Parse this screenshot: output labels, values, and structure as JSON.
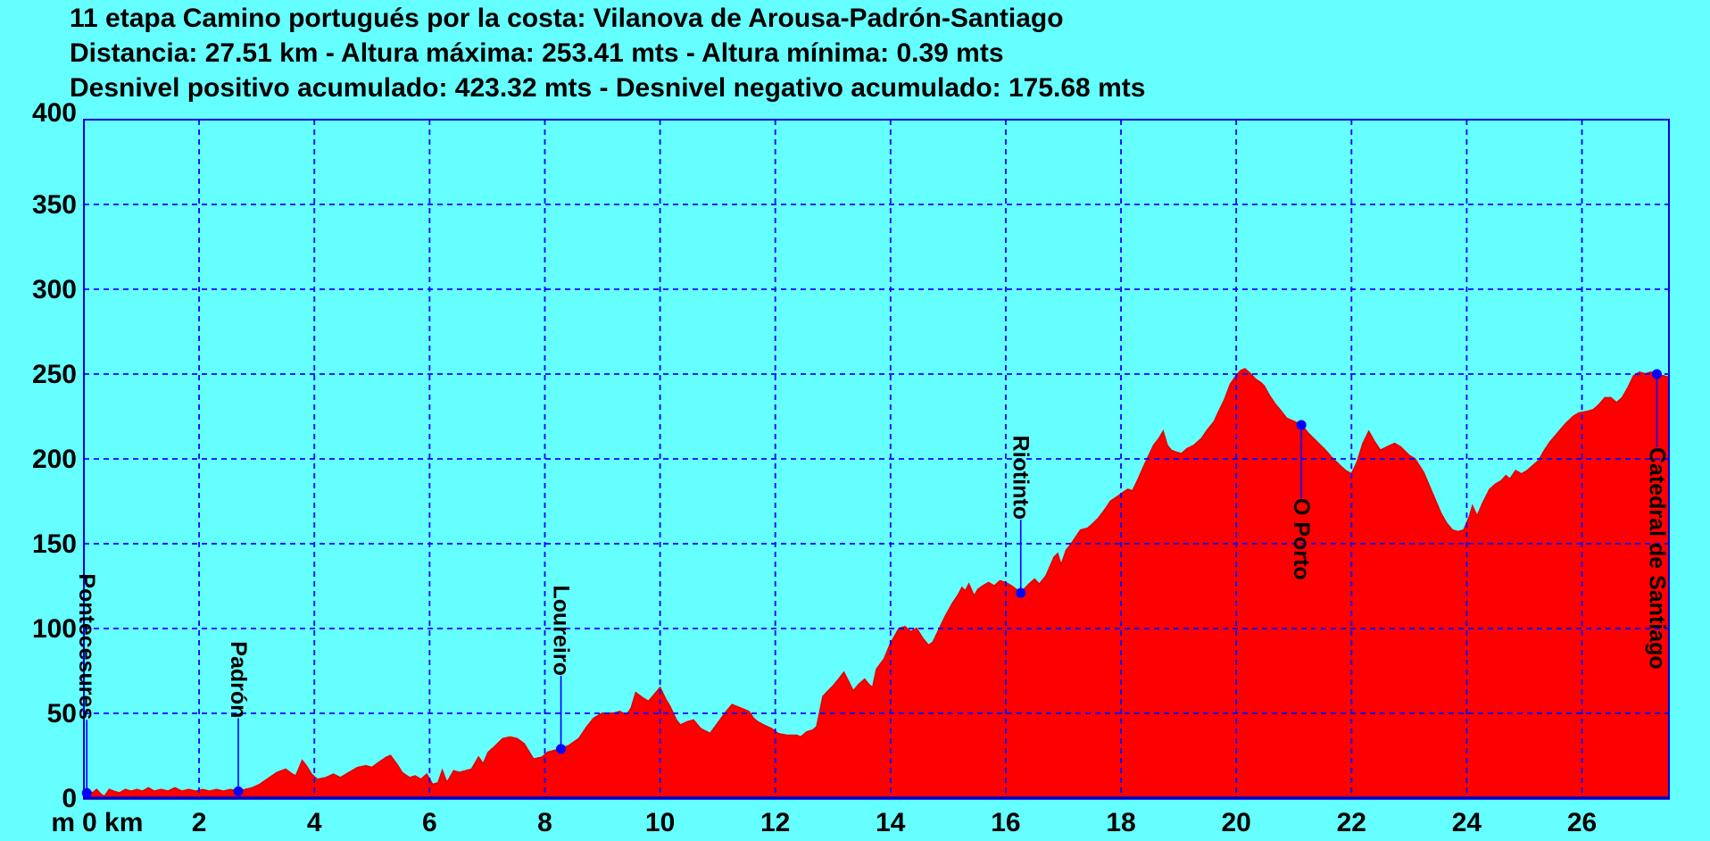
{
  "title": {
    "line1": "11 etapa Camino portugués por la costa: Vilanova de Arousa-Padrón-Santiago",
    "line2": "Distancia: 27.51 km - Altura máxima: 253.41 mts - Altura mínima: 0.39 mts",
    "line3": "Desnivel positivo acumulado: 423.32 mts - Desnivel negativo acumulado: 175.68 mts"
  },
  "chart_data": {
    "type": "area",
    "title": "11 etapa Camino portugués por la costa: Vilanova de Arousa-Padrón-Santiago",
    "stats": {
      "distancia_km": 27.51,
      "altura_maxima_mts": 253.41,
      "altura_minima_mts": 0.39,
      "desnivel_positivo_mts": 423.32,
      "desnivel_negativo_mts": 175.68
    },
    "xlabel": "km",
    "ylabel": "m",
    "xlim": [
      0,
      27.51
    ],
    "ylim": [
      0,
      400
    ],
    "x_ticks": [
      2,
      4,
      6,
      8,
      10,
      12,
      14,
      16,
      18,
      20,
      22,
      24,
      26
    ],
    "y_ticks": [
      0,
      50,
      100,
      150,
      200,
      250,
      300,
      350,
      400
    ],
    "origin_label": "0 km",
    "y_unit_label": "m",
    "grid": true,
    "legend": false,
    "colors": {
      "background": "#66FFFF",
      "area_fill": "#FF0000",
      "area_edge": "#E80000",
      "grid": "#0000FF",
      "border": "#0000DC",
      "axis": "#0000C8",
      "marker": "#0000FF",
      "text": "#000000"
    },
    "waypoints": [
      {
        "name": "Pontecesures",
        "km": 0.05,
        "elevation_m": 3,
        "label_side": "above"
      },
      {
        "name": "Padrón",
        "km": 2.68,
        "elevation_m": 4,
        "label_side": "above"
      },
      {
        "name": "Loureiro",
        "km": 8.28,
        "elevation_m": 29,
        "label_side": "above"
      },
      {
        "name": "Riotinto",
        "km": 16.26,
        "elevation_m": 121,
        "label_side": "above"
      },
      {
        "name": "O Porto",
        "km": 21.13,
        "elevation_m": 220,
        "label_side": "below"
      },
      {
        "name": "Catedral de Santiago",
        "km": 27.3,
        "elevation_m": 250,
        "label_side": "below"
      }
    ],
    "profile_km_m": [
      [
        0.0,
        3
      ],
      [
        0.08,
        4
      ],
      [
        0.15,
        3
      ],
      [
        0.22,
        5
      ],
      [
        0.3,
        2
      ],
      [
        0.36,
        1
      ],
      [
        0.44,
        5
      ],
      [
        0.52,
        4
      ],
      [
        0.62,
        3
      ],
      [
        0.72,
        5
      ],
      [
        0.82,
        4
      ],
      [
        0.92,
        5
      ],
      [
        1.02,
        4
      ],
      [
        1.12,
        6
      ],
      [
        1.22,
        4
      ],
      [
        1.34,
        5
      ],
      [
        1.46,
        4
      ],
      [
        1.58,
        6
      ],
      [
        1.7,
        4
      ],
      [
        1.82,
        5
      ],
      [
        1.94,
        4
      ],
      [
        2.06,
        5
      ],
      [
        2.18,
        4
      ],
      [
        2.3,
        5
      ],
      [
        2.42,
        4
      ],
      [
        2.54,
        5
      ],
      [
        2.68,
        4
      ],
      [
        2.8,
        5
      ],
      [
        2.92,
        6
      ],
      [
        3.05,
        8
      ],
      [
        3.22,
        12
      ],
      [
        3.35,
        15
      ],
      [
        3.5,
        17
      ],
      [
        3.62,
        14
      ],
      [
        3.68,
        13
      ],
      [
        3.79,
        22
      ],
      [
        3.86,
        19
      ],
      [
        3.95,
        14
      ],
      [
        4.05,
        11
      ],
      [
        4.2,
        12
      ],
      [
        4.33,
        14
      ],
      [
        4.45,
        12
      ],
      [
        4.6,
        15
      ],
      [
        4.75,
        18
      ],
      [
        4.9,
        19
      ],
      [
        5.0,
        18
      ],
      [
        5.12,
        21
      ],
      [
        5.25,
        24
      ],
      [
        5.32,
        25
      ],
      [
        5.45,
        19
      ],
      [
        5.52,
        15
      ],
      [
        5.65,
        12
      ],
      [
        5.75,
        13
      ],
      [
        5.85,
        11
      ],
      [
        5.95,
        14
      ],
      [
        6.05,
        8
      ],
      [
        6.15,
        9
      ],
      [
        6.22,
        16
      ],
      [
        6.3,
        9
      ],
      [
        6.42,
        16
      ],
      [
        6.52,
        15
      ],
      [
        6.62,
        16
      ],
      [
        6.73,
        17
      ],
      [
        6.85,
        24
      ],
      [
        6.93,
        20
      ],
      [
        7.02,
        27
      ],
      [
        7.12,
        30
      ],
      [
        7.27,
        35
      ],
      [
        7.4,
        36
      ],
      [
        7.52,
        35
      ],
      [
        7.64,
        32
      ],
      [
        7.8,
        23
      ],
      [
        7.95,
        24
      ],
      [
        8.05,
        27
      ],
      [
        8.16,
        28
      ],
      [
        8.28,
        29
      ],
      [
        8.42,
        31
      ],
      [
        8.59,
        35
      ],
      [
        8.73,
        42
      ],
      [
        8.85,
        47
      ],
      [
        9.0,
        50
      ],
      [
        9.2,
        50
      ],
      [
        9.3,
        51
      ],
      [
        9.42,
        49
      ],
      [
        9.5,
        53
      ],
      [
        9.58,
        62
      ],
      [
        9.7,
        59
      ],
      [
        9.8,
        57
      ],
      [
        9.9,
        61
      ],
      [
        10.0,
        65
      ],
      [
        10.1,
        58
      ],
      [
        10.17,
        54
      ],
      [
        10.28,
        46
      ],
      [
        10.35,
        43
      ],
      [
        10.48,
        45
      ],
      [
        10.58,
        46
      ],
      [
        10.7,
        41
      ],
      [
        10.87,
        38
      ],
      [
        11.0,
        44
      ],
      [
        11.15,
        51
      ],
      [
        11.25,
        55
      ],
      [
        11.4,
        53
      ],
      [
        11.54,
        51
      ],
      [
        11.62,
        47
      ],
      [
        11.69,
        45
      ],
      [
        11.8,
        43
      ],
      [
        11.93,
        41
      ],
      [
        12.05,
        38
      ],
      [
        12.2,
        37
      ],
      [
        12.37,
        37
      ],
      [
        12.44,
        36
      ],
      [
        12.55,
        39
      ],
      [
        12.65,
        40
      ],
      [
        12.72,
        42
      ],
      [
        12.83,
        60
      ],
      [
        13.0,
        66
      ],
      [
        13.1,
        70
      ],
      [
        13.19,
        74
      ],
      [
        13.28,
        68
      ],
      [
        13.35,
        63
      ],
      [
        13.45,
        67
      ],
      [
        13.55,
        70
      ],
      [
        13.62,
        67
      ],
      [
        13.69,
        65
      ],
      [
        13.76,
        76
      ],
      [
        13.89,
        82
      ],
      [
        14.0,
        91
      ],
      [
        14.15,
        100
      ],
      [
        14.25,
        101
      ],
      [
        14.35,
        98
      ],
      [
        14.45,
        100
      ],
      [
        14.56,
        94
      ],
      [
        14.66,
        90
      ],
      [
        14.74,
        92
      ],
      [
        14.85,
        100
      ],
      [
        14.95,
        107
      ],
      [
        15.08,
        115
      ],
      [
        15.18,
        120
      ],
      [
        15.24,
        124
      ],
      [
        15.3,
        122
      ],
      [
        15.36,
        126
      ],
      [
        15.45,
        119
      ],
      [
        15.52,
        123
      ],
      [
        15.6,
        125
      ],
      [
        15.7,
        127
      ],
      [
        15.8,
        125
      ],
      [
        15.9,
        128
      ],
      [
        16.0,
        127
      ],
      [
        16.1,
        125
      ],
      [
        16.18,
        123
      ],
      [
        16.26,
        121
      ],
      [
        16.4,
        126
      ],
      [
        16.5,
        129
      ],
      [
        16.58,
        126
      ],
      [
        16.7,
        131
      ],
      [
        16.84,
        142
      ],
      [
        16.9,
        144
      ],
      [
        16.96,
        137
      ],
      [
        17.05,
        146
      ],
      [
        17.12,
        149
      ],
      [
        17.22,
        154
      ],
      [
        17.3,
        158
      ],
      [
        17.42,
        159
      ],
      [
        17.52,
        162
      ],
      [
        17.61,
        165
      ],
      [
        17.72,
        170
      ],
      [
        17.82,
        175
      ],
      [
        17.95,
        178
      ],
      [
        18.03,
        180
      ],
      [
        18.12,
        182
      ],
      [
        18.2,
        181
      ],
      [
        18.3,
        188
      ],
      [
        18.39,
        195
      ],
      [
        18.5,
        203
      ],
      [
        18.57,
        208
      ],
      [
        18.66,
        212
      ],
      [
        18.73,
        216
      ],
      [
        18.8,
        208
      ],
      [
        18.87,
        205
      ],
      [
        18.95,
        204
      ],
      [
        19.05,
        203
      ],
      [
        19.15,
        206
      ],
      [
        19.27,
        208
      ],
      [
        19.4,
        212
      ],
      [
        19.5,
        217
      ],
      [
        19.62,
        222
      ],
      [
        19.7,
        228
      ],
      [
        19.8,
        235
      ],
      [
        19.9,
        244
      ],
      [
        20.0,
        249
      ],
      [
        20.08,
        252
      ],
      [
        20.15,
        253
      ],
      [
        20.25,
        250
      ],
      [
        20.33,
        247
      ],
      [
        20.42,
        245
      ],
      [
        20.48,
        243
      ],
      [
        20.58,
        237
      ],
      [
        20.68,
        232
      ],
      [
        20.78,
        228
      ],
      [
        20.87,
        224
      ],
      [
        21.0,
        222
      ],
      [
        21.13,
        220
      ],
      [
        21.25,
        215
      ],
      [
        21.4,
        210
      ],
      [
        21.55,
        205
      ],
      [
        21.65,
        201
      ],
      [
        21.8,
        196
      ],
      [
        21.9,
        193
      ],
      [
        22.0,
        191
      ],
      [
        22.1,
        198
      ],
      [
        22.2,
        209
      ],
      [
        22.3,
        216
      ],
      [
        22.4,
        210
      ],
      [
        22.5,
        205
      ],
      [
        22.62,
        207
      ],
      [
        22.75,
        209
      ],
      [
        22.85,
        207
      ],
      [
        23.0,
        202
      ],
      [
        23.1,
        200
      ],
      [
        23.25,
        192
      ],
      [
        23.35,
        184
      ],
      [
        23.45,
        176
      ],
      [
        23.55,
        168
      ],
      [
        23.65,
        162
      ],
      [
        23.75,
        158
      ],
      [
        23.85,
        157
      ],
      [
        23.95,
        158
      ],
      [
        24.05,
        166
      ],
      [
        24.1,
        172
      ],
      [
        24.18,
        166
      ],
      [
        24.28,
        174
      ],
      [
        24.4,
        182
      ],
      [
        24.5,
        185
      ],
      [
        24.6,
        187
      ],
      [
        24.68,
        190
      ],
      [
        24.75,
        188
      ],
      [
        24.85,
        193
      ],
      [
        24.95,
        191
      ],
      [
        25.05,
        193
      ],
      [
        25.15,
        196
      ],
      [
        25.25,
        199
      ],
      [
        25.35,
        205
      ],
      [
        25.45,
        210
      ],
      [
        25.55,
        214
      ],
      [
        25.7,
        220
      ],
      [
        25.85,
        225
      ],
      [
        25.95,
        227
      ],
      [
        26.1,
        228
      ],
      [
        26.2,
        229
      ],
      [
        26.3,
        232
      ],
      [
        26.4,
        236
      ],
      [
        26.5,
        236
      ],
      [
        26.6,
        233
      ],
      [
        26.7,
        236
      ],
      [
        26.8,
        242
      ],
      [
        26.9,
        249
      ],
      [
        27.0,
        251
      ],
      [
        27.1,
        250
      ],
      [
        27.2,
        251
      ],
      [
        27.3,
        250
      ],
      [
        27.4,
        249
      ],
      [
        27.51,
        248
      ]
    ]
  }
}
